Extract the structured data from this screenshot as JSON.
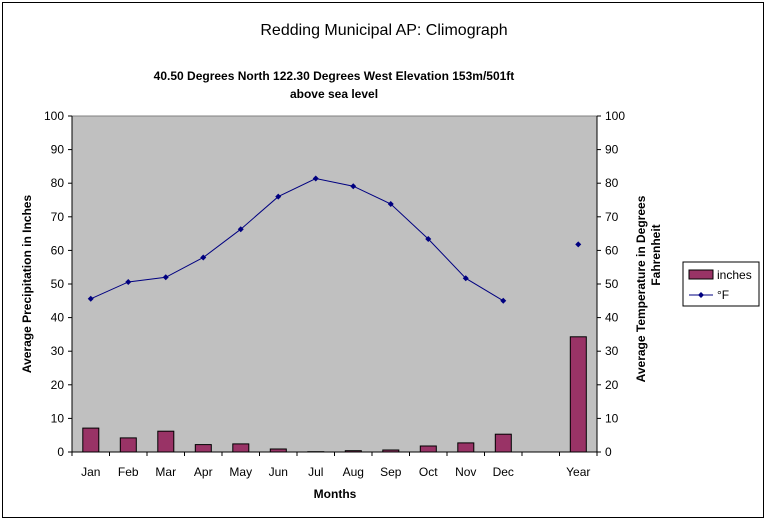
{
  "chart_data": {
    "type": "bar+line",
    "title": "Redding Municipal AP: Climograph",
    "subtitle_line1": "40.50 Degrees North 122.30 Degrees West Elevation 153m/501ft",
    "subtitle_line2": "above sea level",
    "xlabel": "Months",
    "ylabel_left": "Average Precipitation in Inches",
    "ylabel_right_line1": "Average Temperature in Degrees",
    "ylabel_right_line2": "Fahrenheit",
    "ylim": [
      0,
      100
    ],
    "y_ticks": [
      0,
      10,
      20,
      30,
      40,
      50,
      60,
      70,
      80,
      90,
      100
    ],
    "categories": [
      "Jan",
      "Feb",
      "Mar",
      "Apr",
      "May",
      "Jun",
      "Jul",
      "Aug",
      "Sep",
      "Oct",
      "Nov",
      "Dec",
      "",
      "Year"
    ],
    "series": [
      {
        "name": "inches",
        "type": "bar",
        "color": "#993366",
        "values": [
          7.1,
          4.2,
          6.2,
          2.2,
          2.4,
          0.9,
          0.1,
          0.4,
          0.6,
          1.8,
          2.7,
          5.3,
          null,
          34.3
        ]
      },
      {
        "name": "°F",
        "type": "line",
        "color": "#000080",
        "values": [
          45.6,
          50.6,
          52.0,
          57.9,
          66.3,
          76.0,
          81.4,
          79.1,
          73.8,
          63.4,
          51.7,
          45.0,
          null,
          61.8
        ]
      }
    ],
    "plot_background": "#c0c0c0",
    "grid": false,
    "legend_position": "right"
  }
}
